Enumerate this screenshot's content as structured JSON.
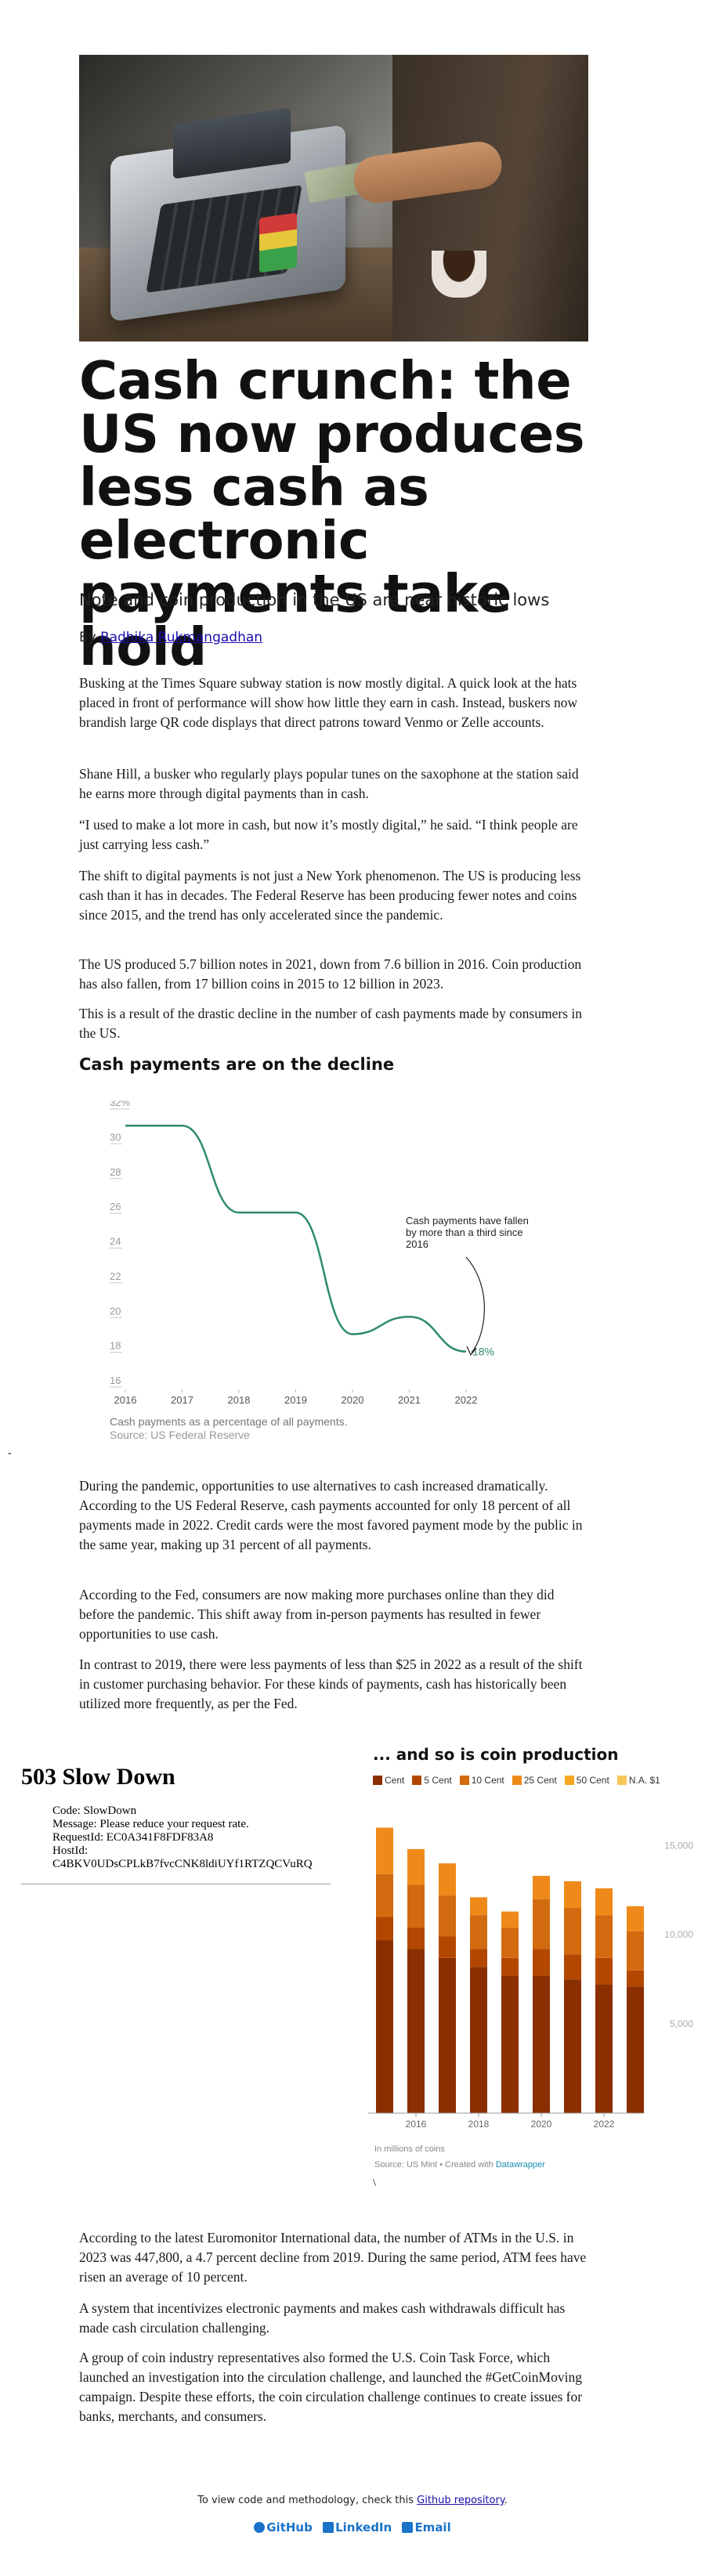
{
  "article": {
    "title": "Cash crunch: the US now produces less cash as electronic payments take hold",
    "subtitle": "Note and coin production in the US are near historic lows",
    "byline_prefix": "By ",
    "author": "Radhika Rukmangadhan"
  },
  "paragraphs_a": [
    "Busking at the Times Square subway station is now mostly digital. A quick look at the hats placed in front of performance will show how little they earn in cash. Instead, buskers now brandish large QR code displays that direct patrons toward Venmo or Zelle accounts.",
    "Shane Hill, a busker who regularly plays popular tunes on the saxophone at the station said he earns more through digital payments than in cash.",
    "“I used to make a lot more in cash, but now it’s mostly digital,” he said. “I think people are just carrying less cash.”",
    "The shift to digital payments is not just a New York phenomenon. The US is producing less cash than it has in decades. The Federal Reserve has been producing fewer notes and coins since 2015, and the trend has only accelerated since the pandemic.",
    "The US produced 5.7 billion notes in 2021, down from 7.6 billion in 2016. Coin production has also fallen, from 17 billion coins in 2015 to 12 billion in 2023.",
    "This is a result of the drastic decline in the number of cash payments made by consumers in the US."
  ],
  "chart1_heading": "Cash payments are on the decline",
  "chart_data": [
    {
      "type": "line",
      "title": "Cash payments are on the decline",
      "x": [
        2016,
        2017,
        2018,
        2019,
        2020,
        2021,
        2022
      ],
      "values": [
        31,
        31,
        26,
        26,
        19,
        20,
        18
      ],
      "yticks": [
        "32%",
        "30",
        "28",
        "26",
        "24",
        "22",
        "20",
        "18",
        "16"
      ],
      "ylim": [
        16,
        32
      ],
      "end_label": "18%",
      "annotation": [
        "Cash payments have fallen",
        "by more than a third since",
        "2016"
      ],
      "note": "Cash payments as a percentage of all payments.",
      "source": "Source: US Federal Reserve",
      "color": "#2e8b6e"
    },
    {
      "type": "bar",
      "title": "... and so is coin production",
      "categories": [
        "2015",
        "2016",
        "2017",
        "2018",
        "2019",
        "2020",
        "2021",
        "2022",
        "2023"
      ],
      "series": [
        {
          "name": "Cent",
          "color": "#8b2e00",
          "values": [
            9700,
            9200,
            8700,
            8200,
            7700,
            7700,
            7500,
            7200,
            7100
          ]
        },
        {
          "name": "5 Cent",
          "color": "#b34700",
          "values": [
            1300,
            1200,
            1200,
            1000,
            1000,
            1500,
            1400,
            1500,
            900
          ]
        },
        {
          "name": "10 Cent",
          "color": "#d26a10",
          "values": [
            2400,
            2400,
            2300,
            1900,
            1700,
            2800,
            2600,
            2400,
            2200
          ]
        },
        {
          "name": "25 Cent",
          "color": "#ef8a1a",
          "values": [
            2600,
            2000,
            1800,
            1000,
            900,
            1300,
            1500,
            1500,
            1400
          ]
        },
        {
          "name": "50 Cent",
          "color": "#f5a623",
          "values": [
            0,
            0,
            0,
            0,
            0,
            0,
            0,
            0,
            0
          ]
        },
        {
          "name": "N.A. $1",
          "color": "#f7c75a",
          "values": [
            0,
            0,
            0,
            0,
            0,
            0,
            0,
            0,
            0
          ]
        }
      ],
      "xtick_labels": [
        "2016",
        "2018",
        "2020",
        "2022"
      ],
      "yticks": [
        "5,000",
        "10,000",
        "15,000"
      ],
      "ylim": [
        0,
        18000
      ],
      "units_note": "In millions of coins",
      "source_prefix": "Source: US Mint • Created with ",
      "source_link": "Datawrapper"
    }
  ],
  "paragraphs_b": [
    "During the pandemic, opportunities to use alternatives to cash increased dramatically. According to the US Federal Reserve, cash payments accounted for only 18 percent of all payments made in 2022. Credit cards were the most favored payment mode by the public in the same year, making up 31 percent of all payments.",
    "According to the Fed, consumers are now making more purchases online than they did before the pandemic. This shift away from in-person payments has resulted in fewer opportunities to use cash.",
    "In contrast to 2019, there were less payments of less than $25 in 2022 as a result of the shift in customer purchasing behavior. For these kinds of payments, cash has historically been utilized more frequently, as per the Fed."
  ],
  "error_block": {
    "heading": "503 Slow Down",
    "items": [
      "Code: SlowDown",
      "Message: Please reduce your request rate.",
      "RequestId: EC0A341F8FDF83A8",
      "HostId:",
      "C4BKV0UDsCPLkB7fvcCNK8ldiUYf1RTZQCVuRQ"
    ]
  },
  "paragraphs_c": [
    "According to the latest Euromonitor International data, the number of ATMs in the U.S. in 2023 was 447,800, a 4.7 percent decline from 2019. During the same period, ATM fees have risen an average of 10 percent.",
    "A system that incentivizes electronic payments and makes cash withdrawals difficult has made cash circulation challenging.",
    "A group of coin industry representatives also formed the U.S. Coin Task Force, which launched an investigation into the circulation challenge, and launched the #GetCoinMoving campaign. Despite these efforts, the coin circulation challenge continues to create issues for banks, merchants, and consumers."
  ],
  "footer": {
    "note_prefix": "To view code and methodology, check this ",
    "note_link": "Github repository",
    "note_suffix": ".",
    "github": "GitHub",
    "linkedin": "LinkedIn",
    "email": "Email"
  },
  "stray": {
    "dash": "-",
    "backslash": "\\"
  }
}
